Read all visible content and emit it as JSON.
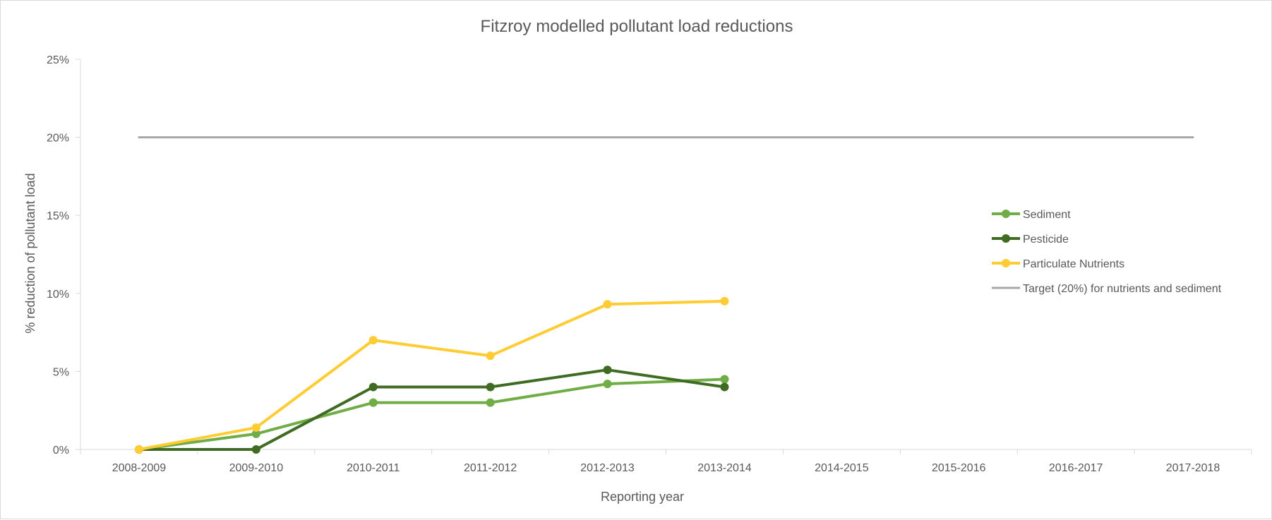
{
  "chart_data": {
    "type": "line",
    "title": "Fitzroy modelled pollutant load reductions",
    "xlabel": "Reporting year",
    "ylabel": "% reduction of pollutant load",
    "categories": [
      "2008-2009",
      "2009-2010",
      "2010-2011",
      "2011-2012",
      "2012-2013",
      "2013-2014",
      "2014-2015",
      "2015-2016",
      "2016-2017",
      "2017-2018"
    ],
    "ylim": [
      0,
      25
    ],
    "yticks": [
      0,
      5,
      10,
      15,
      20,
      25
    ],
    "ytick_labels": [
      "0%",
      "5%",
      "10%",
      "15%",
      "20%",
      "25%"
    ],
    "grid": false,
    "legend_position": "right",
    "series": [
      {
        "name": "Sediment",
        "color": "#70ad47",
        "markers": true,
        "values": [
          0,
          1.0,
          3.0,
          3.0,
          4.2,
          4.5,
          null,
          null,
          null,
          null
        ]
      },
      {
        "name": "Pesticide",
        "color": "#3f6b23",
        "markers": true,
        "values": [
          0,
          0,
          4.0,
          4.0,
          5.1,
          4.0,
          null,
          null,
          null,
          null
        ]
      },
      {
        "name": "Particulate Nutrients",
        "color": "#ffcc33",
        "markers": true,
        "values": [
          0,
          1.4,
          7.0,
          6.0,
          9.3,
          9.5,
          null,
          null,
          null,
          null
        ]
      },
      {
        "name": "Target (20%) for nutrients and sediment",
        "color": "#a6a6a6",
        "markers": false,
        "values": [
          20,
          20,
          20,
          20,
          20,
          20,
          20,
          20,
          20,
          20
        ]
      }
    ]
  }
}
